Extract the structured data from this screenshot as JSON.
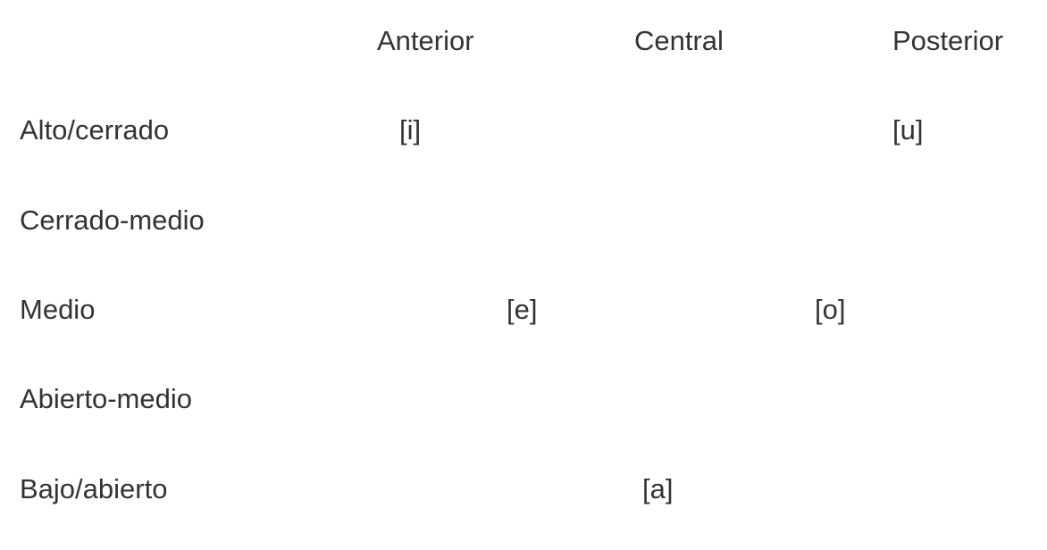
{
  "columns": {
    "anterior": "Anterior",
    "central": "Central",
    "posterior": "Posterior"
  },
  "rows": {
    "alto": "Alto/cerrado",
    "cerrado_medio": "Cerrado-medio",
    "medio": "Medio",
    "abierto_medio": "Abierto-medio",
    "bajo": "Bajo/abierto"
  },
  "vowels": {
    "i": "[i]",
    "u": "[u]",
    "e": "[e]",
    "o": "[o]",
    "a": "[a]"
  }
}
